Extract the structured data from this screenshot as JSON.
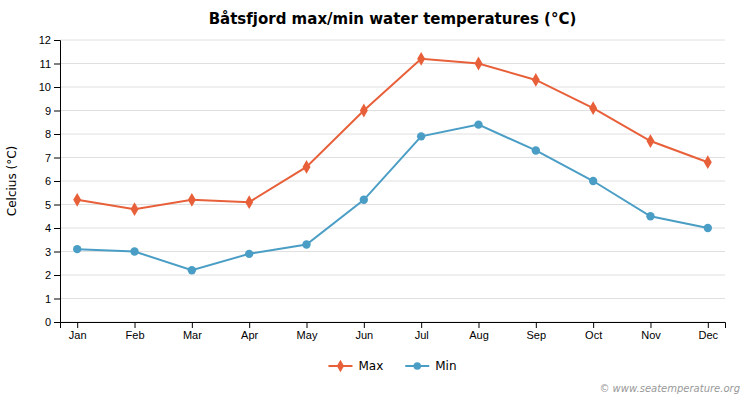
{
  "chart_data": {
    "type": "line",
    "title": "Båtsfjord max/min water temperatures (°C)",
    "y_label": "Celcius (°C)",
    "categories": [
      "Jan",
      "Feb",
      "Mar",
      "Apr",
      "May",
      "Jun",
      "Jul",
      "Aug",
      "Sep",
      "Oct",
      "Nov",
      "Dec"
    ],
    "series": [
      {
        "name": "Max",
        "color": "#e8603a",
        "marker": "diamond",
        "line_style": "solid",
        "values": [
          5.2,
          4.8,
          5.2,
          5.1,
          6.6,
          9.0,
          11.2,
          11.0,
          10.3,
          9.1,
          7.7,
          6.8
        ]
      },
      {
        "name": "Min",
        "color": "#4a9ec5",
        "marker": "circle",
        "line_style": "solid",
        "values": [
          3.1,
          3.0,
          2.2,
          2.9,
          3.3,
          5.2,
          7.9,
          8.4,
          7.3,
          6.0,
          4.5,
          4.0
        ]
      }
    ],
    "ylim": [
      0,
      12
    ],
    "yticks": [
      0,
      1,
      2,
      3,
      4,
      5,
      6,
      7,
      8,
      9,
      10,
      11,
      12
    ],
    "grid": true,
    "legend": "bottom",
    "annotations": [
      "© www.seatemperature.org"
    ]
  }
}
